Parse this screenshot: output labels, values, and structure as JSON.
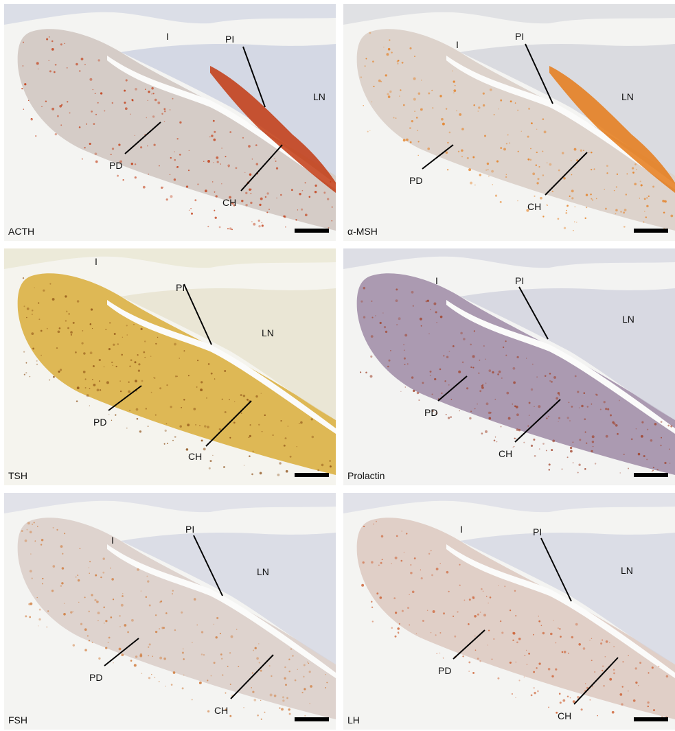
{
  "panels": [
    {
      "id": "acth",
      "stain": "ACTH",
      "labels": {
        "I": "I",
        "PI": "PI",
        "LN": "LN",
        "PD": "PD",
        "CH": "CH"
      },
      "colors": {
        "tissue": "#c9cfdf",
        "pd_tint": "#cfc4c0",
        "stain": "#c23a12",
        "bg": "#f4f4f2"
      }
    },
    {
      "id": "amsh",
      "stain": "α-MSH",
      "labels": {
        "I": "I",
        "PI": "PI",
        "LN": "LN",
        "PD": "PD",
        "CH": "CH"
      },
      "colors": {
        "tissue": "#d2d3da",
        "pd_tint": "#d8ccc6",
        "stain": "#e57a18",
        "bg": "#f4f4f2"
      }
    },
    {
      "id": "tsh",
      "stain": "TSH",
      "labels": {
        "I": "I",
        "PI": "PI",
        "LN": "LN",
        "PD": "PD",
        "CH": "CH"
      },
      "colors": {
        "tissue": "#e6e2cc",
        "pd_tint": "#d9ad3a",
        "stain": "#8a4b12",
        "bg": "#f5f4ee"
      }
    },
    {
      "id": "prolactin",
      "stain": "Prolactin",
      "labels": {
        "I": "I",
        "PI": "PI",
        "LN": "LN",
        "PD": "PD",
        "CH": "CH"
      },
      "colors": {
        "tissue": "#cfd0dc",
        "pd_tint": "#9e8aa6",
        "stain": "#a0422a",
        "bg": "#f3f3f2"
      }
    },
    {
      "id": "fsh",
      "stain": "FSH",
      "labels": {
        "I": "I",
        "PI": "PI",
        "LN": "LN",
        "PD": "PD",
        "CH": "CH"
      },
      "colors": {
        "tissue": "#d3d6e2",
        "pd_tint": "#d9cdc8",
        "stain": "#d07a3a",
        "bg": "#f4f4f2"
      }
    },
    {
      "id": "lh",
      "stain": "LH",
      "labels": {
        "I": "I",
        "PI": "PI",
        "LN": "LN",
        "PD": "PD",
        "CH": "CH"
      },
      "colors": {
        "tissue": "#d3d6e2",
        "pd_tint": "#dcc8bf",
        "stain": "#cc5a2a",
        "bg": "#f4f4f2"
      }
    }
  ]
}
